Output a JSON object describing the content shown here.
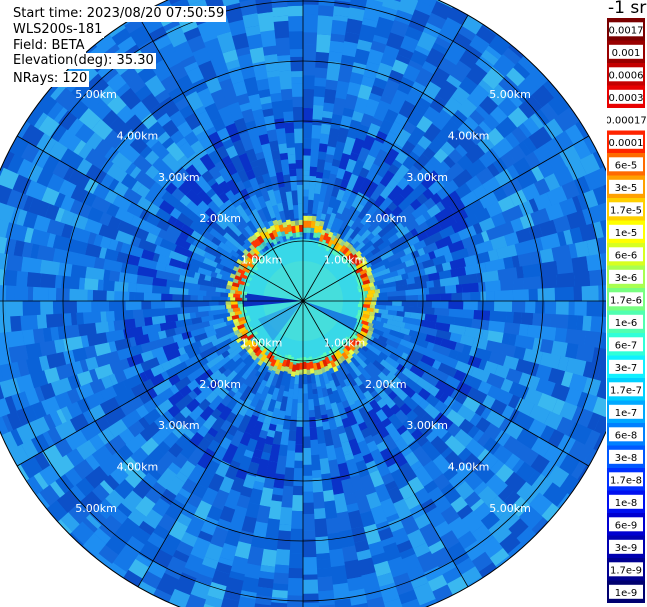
{
  "info": {
    "start_time": "Start time: 2023/08/20 07:50:59",
    "instrument": "WLS200s-181",
    "field": "Field: BETA",
    "elevation": "Elevation(deg): 35.30",
    "nrays": "NRays: 120"
  },
  "colorbar": {
    "unit_label": "-1 sr",
    "ticks": [
      "0.0017",
      "0.001",
      "0.0006",
      "0.0003",
      "0.00017",
      "0.0001",
      "6e-5",
      "3e-5",
      "1.7e-5",
      "1e-5",
      "6e-6",
      "3e-6",
      "1.7e-6",
      "1e-6",
      "6e-7",
      "3e-7",
      "1.7e-7",
      "1e-7",
      "6e-8",
      "3e-8",
      "1.7e-8",
      "1e-8",
      "6e-9",
      "3e-9",
      "1.7e-9",
      "1e-9"
    ],
    "colors": [
      "#7a0000",
      "#990000",
      "#c40000",
      "#e80000",
      "#ffffff",
      "#ff2400",
      "#ff6a00",
      "#ffa000",
      "#ffd000",
      "#ffff00",
      "#d8ff20",
      "#a8ff50",
      "#78ff80",
      "#50ffb0",
      "#30ffd8",
      "#10f0ff",
      "#00d0ff",
      "#00a8ff",
      "#0080ff",
      "#0058ff",
      "#0030ff",
      "#0010f0",
      "#0000d0",
      "#0000b0",
      "#000090",
      "#000070"
    ]
  },
  "chart_data": {
    "type": "heatmap",
    "projection": "polar PPI scan",
    "quantity": "BETA",
    "rays": 120,
    "range_ring_labels": [
      "1.00km",
      "2.00km",
      "3.00km",
      "4.00km",
      "5.00km"
    ],
    "range_rings_km": [
      1,
      2,
      3,
      4,
      5
    ],
    "max_range_km": 5.5,
    "spokes_deg": [
      0,
      30,
      60,
      90,
      120,
      150,
      180,
      210,
      240,
      270,
      300,
      330
    ],
    "background_level": "1e-8",
    "features": [
      {
        "description_level": "high-backscatter ring",
        "radius_km": 1.1,
        "level": "3e-5"
      },
      {
        "description_level": "inner disk",
        "radius_km": 1.0,
        "level": "1.7e-7"
      }
    ]
  }
}
